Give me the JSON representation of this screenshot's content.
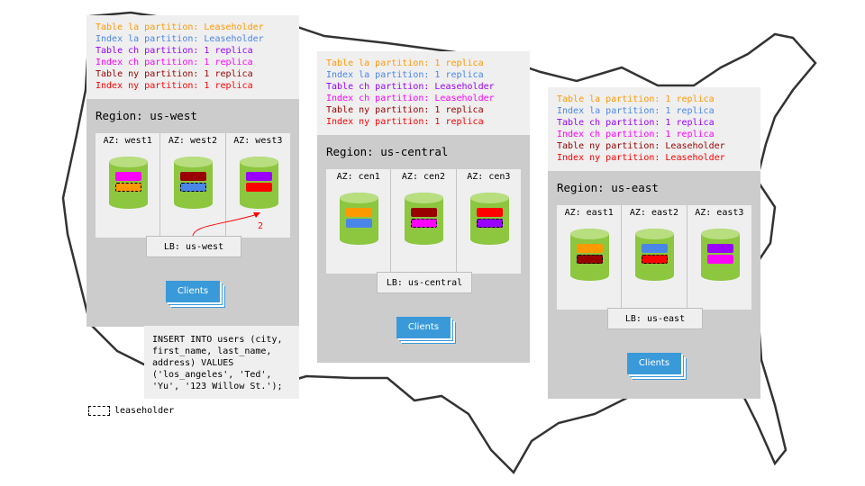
{
  "colors": {
    "la_table": "#ff9900",
    "la_index": "#4a86e8",
    "ch_table": "#9900ff",
    "ch_index": "#ff00ff",
    "ny_table": "#990000",
    "ny_index": "#ff0000",
    "db": "#8dc63f",
    "clients": "#3a9ad9"
  },
  "regions": [
    {
      "title": "Region: us-west",
      "lb": "LB: us-west",
      "clients": "Clients",
      "lines": [
        {
          "text": "Table la partition: Leaseholder",
          "color": "#ff9900"
        },
        {
          "text": "Index la partition: Leaseholder",
          "color": "#4a86e8"
        },
        {
          "text": "Table ch partition: 1 replica",
          "color": "#9900ff"
        },
        {
          "text": "Index ch partition: 1 replica",
          "color": "#ff00ff"
        },
        {
          "text": "Table ny partition: 1 replica",
          "color": "#990000"
        },
        {
          "text": "Index ny partition: 1 replica",
          "color": "#ff0000"
        }
      ],
      "azs": [
        {
          "label": "AZ: west1",
          "bars": [
            {
              "color": "#ff00ff",
              "leaseholder": false
            },
            {
              "color": "#ff9900",
              "leaseholder": true
            }
          ]
        },
        {
          "label": "AZ: west2",
          "bars": [
            {
              "color": "#990000",
              "leaseholder": false
            },
            {
              "color": "#4a86e8",
              "leaseholder": true
            }
          ]
        },
        {
          "label": "AZ: west3",
          "bars": [
            {
              "color": "#9900ff",
              "leaseholder": false
            },
            {
              "color": "#ff0000",
              "leaseholder": false
            }
          ]
        }
      ],
      "arrow_label": "2"
    },
    {
      "title": "Region: us-central",
      "lb": "LB: us-central",
      "clients": "Clients",
      "lines": [
        {
          "text": "Table la partition: 1 replica",
          "color": "#ff9900"
        },
        {
          "text": "Index la partition: 1 replica",
          "color": "#4a86e8"
        },
        {
          "text": "Table ch partition: Leaseholder",
          "color": "#9900ff"
        },
        {
          "text": "Index ch partition: Leaseholder",
          "color": "#ff00ff"
        },
        {
          "text": "Table ny partition: 1 replica",
          "color": "#990000"
        },
        {
          "text": "Index ny partition: 1 replica",
          "color": "#ff0000"
        }
      ],
      "azs": [
        {
          "label": "AZ: cen1",
          "bars": [
            {
              "color": "#ff9900",
              "leaseholder": false
            },
            {
              "color": "#4a86e8",
              "leaseholder": false
            }
          ]
        },
        {
          "label": "AZ: cen2",
          "bars": [
            {
              "color": "#990000",
              "leaseholder": false
            },
            {
              "color": "#ff00ff",
              "leaseholder": true
            }
          ]
        },
        {
          "label": "AZ: cen3",
          "bars": [
            {
              "color": "#ff0000",
              "leaseholder": false
            },
            {
              "color": "#9900ff",
              "leaseholder": true
            }
          ]
        }
      ]
    },
    {
      "title": "Region: us-east",
      "lb": "LB: us-east",
      "clients": "Clients",
      "lines": [
        {
          "text": "Table la partition: 1 replica",
          "color": "#ff9900"
        },
        {
          "text": "Index la partition: 1 replica",
          "color": "#4a86e8"
        },
        {
          "text": "Table ch partition: 1 replica",
          "color": "#9900ff"
        },
        {
          "text": "Index ch partition: 1 replica",
          "color": "#ff00ff"
        },
        {
          "text": "Table ny partition: Leaseholder",
          "color": "#990000"
        },
        {
          "text": "Index ny partition: Leaseholder",
          "color": "#ff0000"
        }
      ],
      "azs": [
        {
          "label": "AZ: east1",
          "bars": [
            {
              "color": "#ff9900",
              "leaseholder": false
            },
            {
              "color": "#990000",
              "leaseholder": true
            }
          ]
        },
        {
          "label": "AZ: east2",
          "bars": [
            {
              "color": "#4a86e8",
              "leaseholder": false
            },
            {
              "color": "#ff0000",
              "leaseholder": true
            }
          ]
        },
        {
          "label": "AZ: east3",
          "bars": [
            {
              "color": "#9900ff",
              "leaseholder": false
            },
            {
              "color": "#ff00ff",
              "leaseholder": false
            }
          ]
        }
      ]
    }
  ],
  "sql": "INSERT INTO users (city, first_name, last_name, address) VALUES ('los_angeles', 'Ted', 'Yu', '123 Willow St.');",
  "legend": "leaseholder"
}
